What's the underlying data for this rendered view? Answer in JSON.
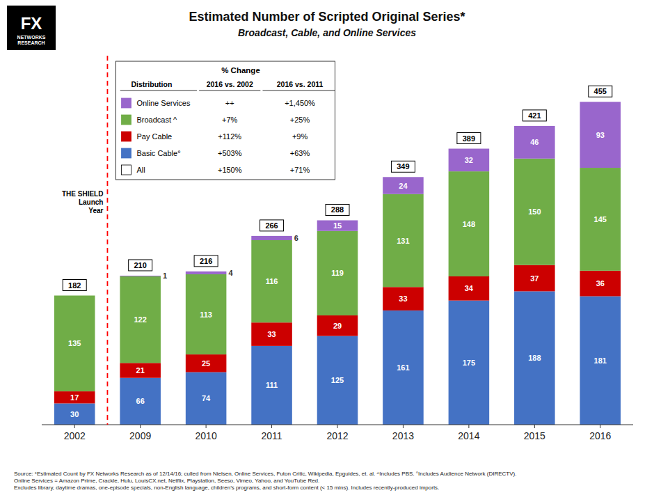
{
  "chart_data": {
    "type": "bar",
    "stacked": true,
    "title": "Estimated Number of Scripted Original Series*",
    "subtitle": "Broadcast, Cable, and Online Services",
    "categories": [
      "2002",
      "2009",
      "2010",
      "2011",
      "2012",
      "2013",
      "2014",
      "2015",
      "2016"
    ],
    "series": [
      {
        "name": "Basic Cable°",
        "color": "#4472C4",
        "values": [
          30,
          66,
          74,
          111,
          125,
          161,
          175,
          188,
          181
        ],
        "change_2002": "+503%",
        "change_2011": "+63%"
      },
      {
        "name": "Pay Cable",
        "color": "#CC0000",
        "values": [
          17,
          21,
          25,
          33,
          29,
          33,
          34,
          37,
          36
        ],
        "change_2002": "+112%",
        "change_2011": "+9%"
      },
      {
        "name": "Broadcast ^",
        "color": "#70AD47",
        "values": [
          135,
          122,
          113,
          116,
          119,
          131,
          148,
          150,
          145
        ],
        "change_2002": "+7%",
        "change_2011": "+25%"
      },
      {
        "name": "Online Services",
        "color": "#9966CC",
        "values": [
          0,
          1,
          4,
          6,
          15,
          24,
          32,
          46,
          93
        ],
        "change_2002": "++",
        "change_2011": "+1,450%"
      }
    ],
    "totals": {
      "name": "All",
      "color": "white",
      "values": [
        182,
        210,
        216,
        266,
        288,
        349,
        389,
        421,
        455
      ],
      "change_2002": "+150%",
      "change_2011": "+71%"
    },
    "legend_title": "% Change",
    "legend_columns": [
      "Distribution",
      "2016 vs. 2002",
      "2016 vs. 2011"
    ],
    "annotations": [
      {
        "text": "THE SHIELD\nLaunch\nYear",
        "color": "red"
      }
    ],
    "logo": {
      "title": "FX",
      "subtitle": "NETWORKS\nRESEARCH"
    },
    "source": "Source:  *Estimated Count by FX Networks Research as of 12/14/16; culled from Nielsen, Online Services, Futon Critic, Wikipedia, Epguides, et. al.  ^Includes PBS.  °Includes Audience Network (DIRECTV).\nOnline Services = Amazon Prime, Crackle, Hulu, LouisCX.net, Netflix, Playstation, Seeso, Vimeo, Yahoo, and YouTube Red.\nExcludes library, daytime dramas, one-episode specials, non-English language, children’s programs, and short-form content (< 15 mins).  Includes recently-produced imports.",
    "ylim": [
      0,
      520
    ],
    "tick_labels": "x",
    "grid": false,
    "data_labels": true,
    "legend": "upper left"
  }
}
